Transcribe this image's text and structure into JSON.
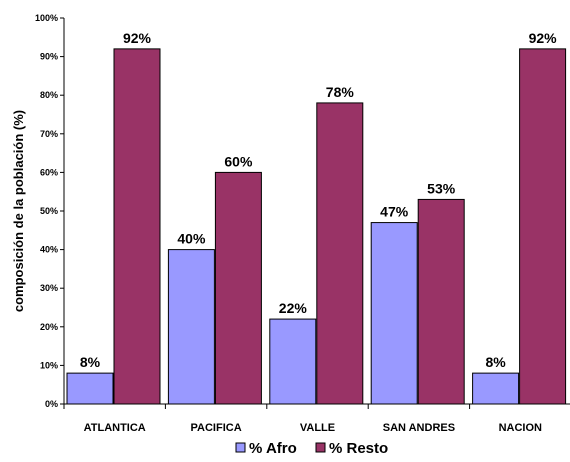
{
  "chart_data": {
    "type": "bar",
    "categories": [
      "ATLANTICA",
      "PACIFICA",
      "VALLE",
      "SAN ANDRES",
      "NACION"
    ],
    "series": [
      {
        "name": "% Afro",
        "values": [
          8,
          40,
          22,
          47,
          8
        ],
        "labels": [
          "8%",
          "40%",
          "22%",
          "47%",
          "8%"
        ],
        "color": "#9999ff"
      },
      {
        "name": "% Resto",
        "values": [
          92,
          60,
          78,
          53,
          92
        ],
        "labels": [
          "92%",
          "60%",
          "78%",
          "53%",
          "92%"
        ],
        "color": "#993366"
      }
    ],
    "ylabel": "composición de la población (%)",
    "ylim": [
      0,
      100
    ],
    "yticks": [
      "0%",
      "10%",
      "20%",
      "30%",
      "40%",
      "50%",
      "60%",
      "70%",
      "80%",
      "90%",
      "100%"
    ],
    "grid": false,
    "legend_position": "bottom"
  }
}
